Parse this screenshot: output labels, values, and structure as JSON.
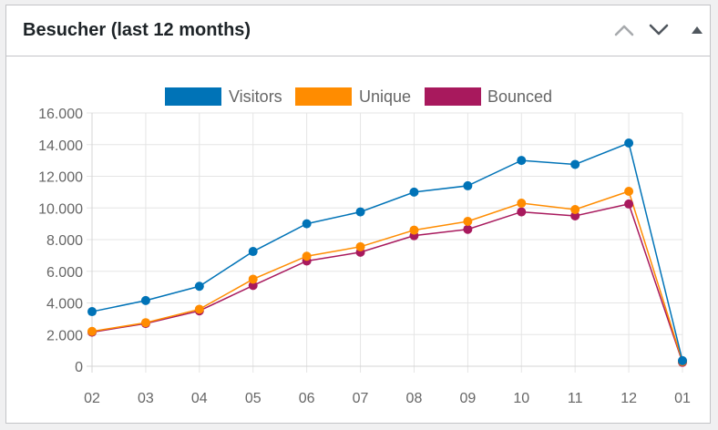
{
  "widget": {
    "title": "Besucher (last 12 months)",
    "controls": [
      {
        "name": "move-up",
        "icon": "chevron-up-icon"
      },
      {
        "name": "move-down",
        "icon": "chevron-down-icon"
      },
      {
        "name": "toggle-panel",
        "icon": "triangle-up-icon"
      }
    ]
  },
  "chart_data": {
    "type": "line",
    "categories": [
      "02",
      "03",
      "04",
      "05",
      "06",
      "07",
      "08",
      "09",
      "10",
      "11",
      "12",
      "01"
    ],
    "series": [
      {
        "name": "Visitors",
        "color": "#0073b7",
        "values": [
          3450,
          4150,
          5050,
          7250,
          9000,
          9750,
          11000,
          11400,
          13000,
          12750,
          14100,
          350
        ]
      },
      {
        "name": "Unique",
        "color": "#ff8c00",
        "values": [
          2200,
          2750,
          3600,
          5500,
          6950,
          7550,
          8600,
          9150,
          10300,
          9900,
          11050,
          300
        ]
      },
      {
        "name": "Bounced",
        "color": "#a8195d",
        "values": [
          2150,
          2700,
          3500,
          5100,
          6650,
          7200,
          8250,
          8650,
          9750,
          9500,
          10250,
          250
        ]
      }
    ],
    "ylim": [
      0,
      16000
    ],
    "yticks": [
      "16.000",
      "14.000",
      "12.000",
      "10.000",
      "8.000",
      "6.000",
      "4.000",
      "2.000",
      "0"
    ],
    "ytick_values": [
      16000,
      14000,
      12000,
      10000,
      8000,
      6000,
      4000,
      2000,
      0
    ],
    "grid": true,
    "legend_position": "top-center"
  }
}
